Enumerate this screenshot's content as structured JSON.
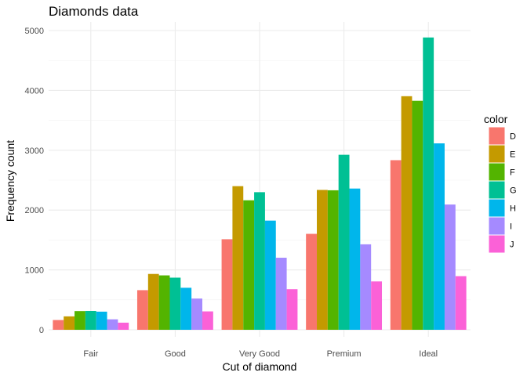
{
  "chart_data": {
    "type": "bar",
    "title": "Diamonds data",
    "xlabel": "Cut of diamond",
    "ylabel": "Frequency count",
    "ylim": [
      0,
      5200
    ],
    "yticks": [
      0,
      1000,
      2000,
      3000,
      4000,
      5000
    ],
    "grid": true,
    "legend": {
      "title": "color",
      "position": "right"
    },
    "categories": [
      "Fair",
      "Good",
      "Very Good",
      "Premium",
      "Ideal"
    ],
    "series": [
      {
        "name": "D",
        "color": "#F8766D",
        "values": [
          163,
          662,
          1513,
          1603,
          2834
        ]
      },
      {
        "name": "E",
        "color": "#C49A00",
        "values": [
          224,
          933,
          2400,
          2337,
          3903
        ]
      },
      {
        "name": "F",
        "color": "#53B400",
        "values": [
          312,
          909,
          2164,
          2331,
          3826
        ]
      },
      {
        "name": "G",
        "color": "#00C094",
        "values": [
          314,
          871,
          2299,
          2924,
          4884
        ]
      },
      {
        "name": "H",
        "color": "#00B6EB",
        "values": [
          303,
          702,
          1824,
          2360,
          3115
        ]
      },
      {
        "name": "I",
        "color": "#A58AFF",
        "values": [
          175,
          522,
          1204,
          1428,
          2093
        ]
      },
      {
        "name": "J",
        "color": "#FB61D7",
        "values": [
          119,
          307,
          678,
          808,
          896
        ]
      }
    ]
  }
}
